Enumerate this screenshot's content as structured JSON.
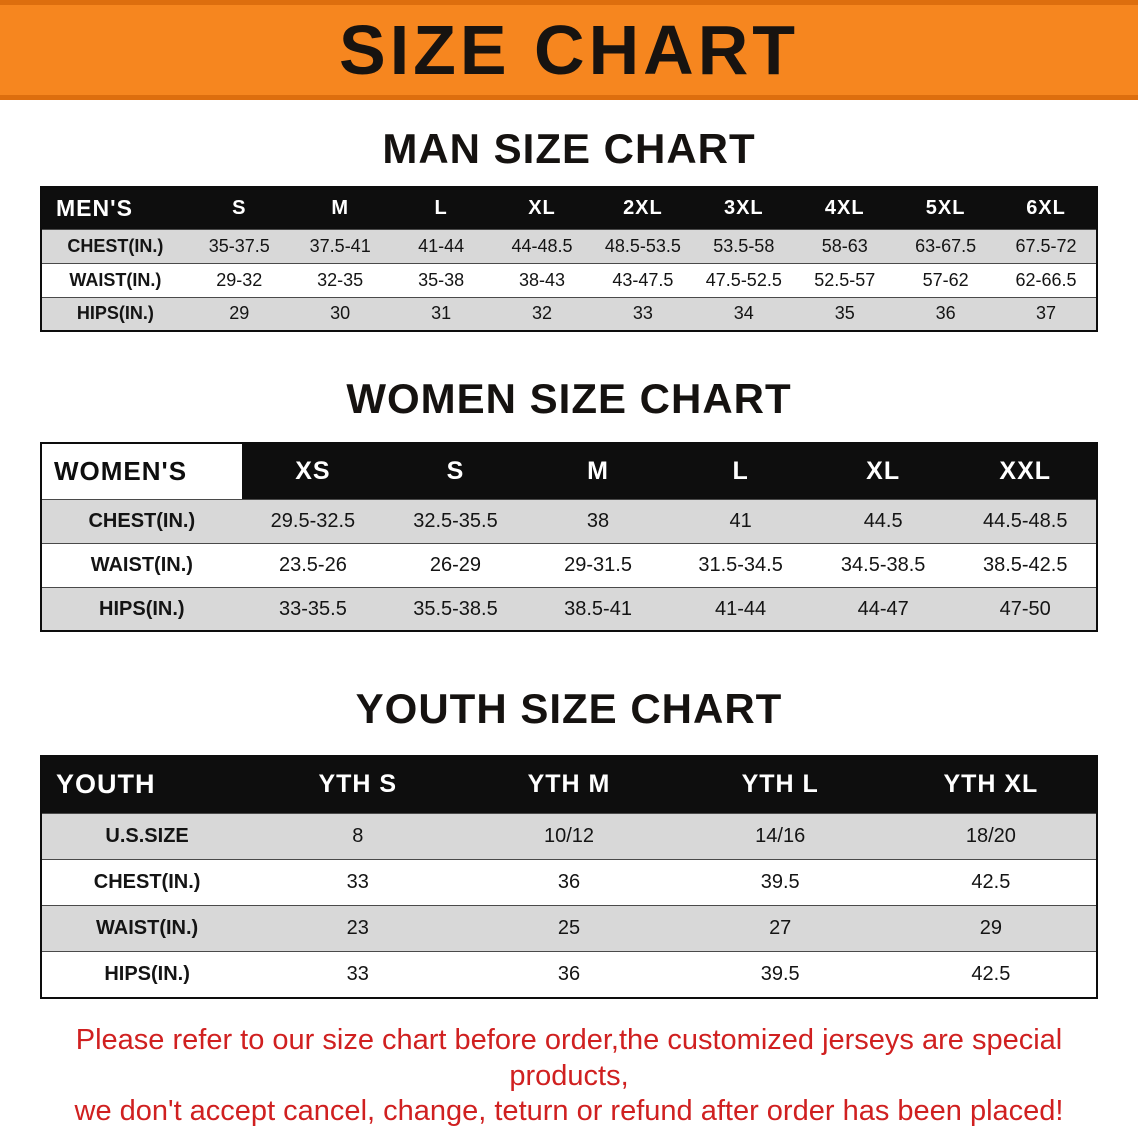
{
  "banner": {
    "title": "SIZE CHART"
  },
  "sections": [
    {
      "key": "mens",
      "heading": "MAN SIZE CHART",
      "table": {
        "header": [
          "MEN'S",
          "S",
          "M",
          "L",
          "XL",
          "2XL",
          "3XL",
          "4XL",
          "5XL",
          "6XL"
        ],
        "rows": [
          [
            "CHEST(IN.)",
            "35-37.5",
            "37.5-41",
            "41-44",
            "44-48.5",
            "48.5-53.5",
            "53.5-58",
            "58-63",
            "63-67.5",
            "67.5-72"
          ],
          [
            "WAIST(IN.)",
            "29-32",
            "32-35",
            "35-38",
            "38-43",
            "43-47.5",
            "47.5-52.5",
            "52.5-57",
            "57-62",
            "62-66.5"
          ],
          [
            "HIPS(IN.)",
            "29",
            "30",
            "31",
            "32",
            "33",
            "34",
            "35",
            "36",
            "37"
          ]
        ]
      }
    },
    {
      "key": "womens",
      "heading": "WOMEN SIZE CHART",
      "table": {
        "header": [
          "WOMEN'S",
          "XS",
          "S",
          "M",
          "L",
          "XL",
          "XXL"
        ],
        "rows": [
          [
            "CHEST(IN.)",
            "29.5-32.5",
            "32.5-35.5",
            "38",
            "41",
            "44.5",
            "44.5-48.5"
          ],
          [
            "WAIST(IN.)",
            "23.5-26",
            "26-29",
            "29-31.5",
            "31.5-34.5",
            "34.5-38.5",
            "38.5-42.5"
          ],
          [
            "HIPS(IN.)",
            "33-35.5",
            "35.5-38.5",
            "38.5-41",
            "41-44",
            "44-47",
            "47-50"
          ]
        ]
      }
    },
    {
      "key": "youth",
      "heading": "YOUTH SIZE CHART",
      "table": {
        "header": [
          "YOUTH",
          "YTH S",
          "YTH M",
          "YTH L",
          "YTH XL"
        ],
        "rows": [
          [
            "U.S.SIZE",
            "8",
            "10/12",
            "14/16",
            "18/20"
          ],
          [
            "CHEST(IN.)",
            "33",
            "36",
            "39.5",
            "42.5"
          ],
          [
            "WAIST(IN.)",
            "23",
            "25",
            "27",
            "29"
          ],
          [
            "HIPS(IN.)",
            "33",
            "36",
            "39.5",
            "42.5"
          ]
        ]
      }
    }
  ],
  "footer": {
    "line1": "Please refer to our size chart before order,the customized jerseys are special products,",
    "line2": "we don't accept cancel, change, teturn or refund after order has been placed!"
  },
  "colors": {
    "banner_bg": "#f6861f",
    "header_bg": "#0e0e0e",
    "row_stripe": "#d8d8d8",
    "footer_text": "#d02020"
  }
}
